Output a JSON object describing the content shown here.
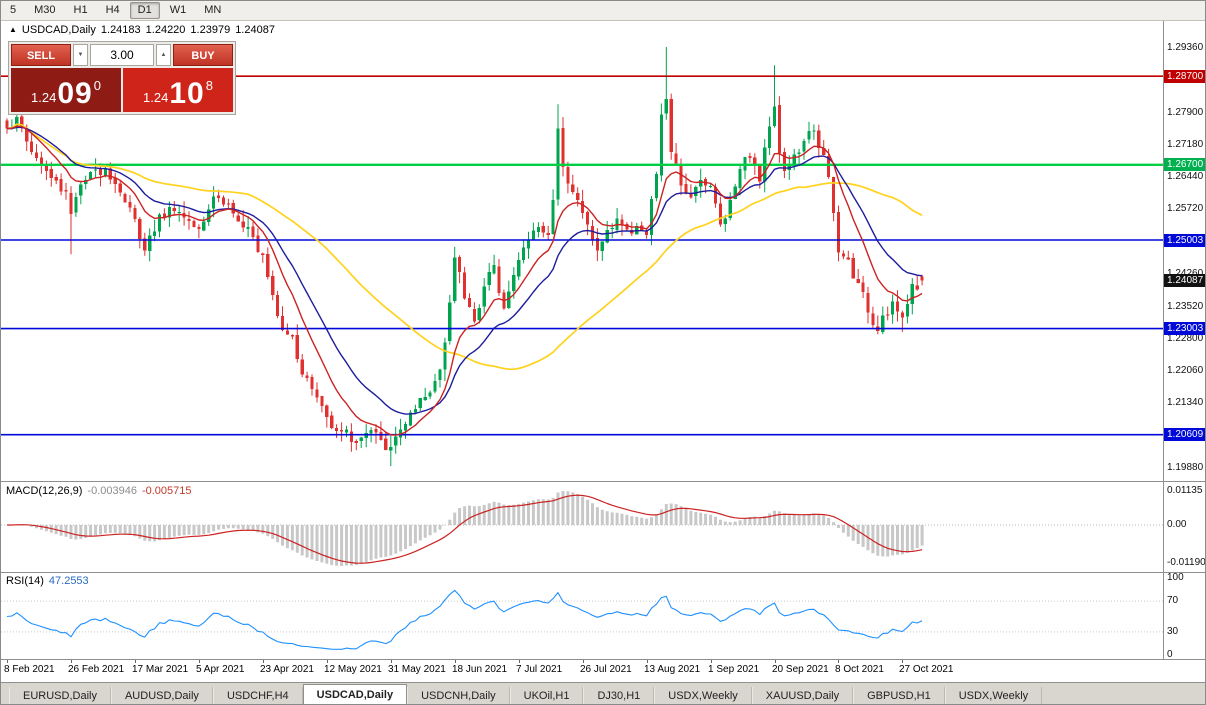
{
  "toolbar": {
    "buttons": [
      {
        "label": "5",
        "active": false
      },
      {
        "label": "M30",
        "active": false
      },
      {
        "label": "H1",
        "active": false
      },
      {
        "label": "H4",
        "active": false
      },
      {
        "label": "D1",
        "active": true
      },
      {
        "label": "W1",
        "active": false
      },
      {
        "label": "MN",
        "active": false
      }
    ]
  },
  "chart": {
    "symbol_line": {
      "marker": "▲",
      "title": "USDCAD,Daily",
      "open": "1.24183",
      "high": "1.24220",
      "low": "1.23979",
      "close": "1.24087"
    },
    "trade_panel": {
      "sell_label": "SELL",
      "buy_label": "BUY",
      "lots": "3.00",
      "down_arrow": "▼",
      "up_arrow": "▲",
      "sell_price": {
        "small": "1.24",
        "big": "09",
        "sup": "0"
      },
      "buy_price": {
        "small": "1.24",
        "big": "10",
        "sup": "8"
      }
    },
    "hlines": [
      {
        "price": 1.287,
        "color": "#c00000",
        "width": 1.6
      },
      {
        "price": 1.267,
        "color": "#00ce43",
        "width": 2.4
      },
      {
        "price": 1.25003,
        "color": "#0009d8",
        "width": 1.6
      },
      {
        "price": 1.23003,
        "color": "#0009d8",
        "width": 1.6
      },
      {
        "price": 1.20609,
        "color": "#0009d8",
        "width": 1.6
      }
    ],
    "price_axis": {
      "ticks": [
        {
          "label": "1.29360",
          "price": 1.2936
        },
        {
          "label": "1.27900",
          "price": 1.279
        },
        {
          "label": "1.27180",
          "price": 1.2718
        },
        {
          "label": "1.26440",
          "price": 1.2644
        },
        {
          "label": "1.25720",
          "price": 1.2572
        },
        {
          "label": "1.24260",
          "price": 1.2426
        },
        {
          "label": "1.23520",
          "price": 1.2352
        },
        {
          "label": "1.22800",
          "price": 1.228
        },
        {
          "label": "1.22060",
          "price": 1.2206
        },
        {
          "label": "1.21340",
          "price": 1.2134
        },
        {
          "label": "1.19880",
          "price": 1.1988
        }
      ],
      "badges": [
        {
          "label": "1.28700",
          "price": 1.287,
          "color": "#c00000"
        },
        {
          "label": "1.26700",
          "price": 1.267,
          "color": "#00b050"
        },
        {
          "label": "1.25003",
          "price": 1.25003,
          "color": "#0009d8"
        },
        {
          "label": "1.24087",
          "price": 1.24087,
          "color": "#111111",
          "current": true
        },
        {
          "label": "1.23003",
          "price": 1.23003,
          "color": "#0009d8"
        },
        {
          "label": "1.20609",
          "price": 1.20609,
          "color": "#0009d8"
        }
      ]
    }
  },
  "chart_data": {
    "type": "candlestick",
    "symbol": "USDCAD",
    "timeframe": "Daily",
    "ohlc_current": {
      "open": 1.24183,
      "high": 1.2422,
      "low": 1.23979,
      "close": 1.24087
    },
    "bars_total": 187,
    "price_range_top": 1.2936,
    "price_range_bottom": 1.1988,
    "up_color": "#00a44f",
    "down_color": "#e03131",
    "ma": {
      "fast": {
        "period": 10,
        "color": "#cc2222"
      },
      "mid": {
        "period": 20,
        "color": "#1d1d9e"
      },
      "slow": {
        "period": 50,
        "color": "#ffd21e"
      }
    },
    "seed": 1337,
    "anchors": [
      [
        0,
        1.2755
      ],
      [
        2,
        1.2775
      ],
      [
        5,
        1.27
      ],
      [
        9,
        1.264
      ],
      [
        12,
        1.261
      ],
      [
        13,
        1.256
      ],
      [
        14,
        1.26
      ],
      [
        17,
        1.265
      ],
      [
        20,
        1.2665
      ],
      [
        23,
        1.261
      ],
      [
        26,
        1.2545
      ],
      [
        28,
        1.248
      ],
      [
        31,
        1.2555
      ],
      [
        34,
        1.257
      ],
      [
        37,
        1.2545
      ],
      [
        39,
        1.253
      ],
      [
        42,
        1.26
      ],
      [
        45,
        1.258
      ],
      [
        48,
        1.2525
      ],
      [
        50,
        1.2505
      ],
      [
        52,
        1.247
      ],
      [
        54,
        1.238
      ],
      [
        56,
        1.23
      ],
      [
        58,
        1.2285
      ],
      [
        60,
        1.22
      ],
      [
        63,
        1.2145
      ],
      [
        65,
        1.21
      ],
      [
        68,
        1.207
      ],
      [
        71,
        1.2045
      ],
      [
        74,
        1.207
      ],
      [
        76,
        1.2045
      ],
      [
        78,
        1.203
      ],
      [
        80,
        1.2075
      ],
      [
        83,
        1.2115
      ],
      [
        86,
        1.2155
      ],
      [
        88,
        1.221
      ],
      [
        90,
        1.236
      ],
      [
        91,
        1.246
      ],
      [
        93,
        1.237
      ],
      [
        95,
        1.232
      ],
      [
        97,
        1.2395
      ],
      [
        99,
        1.244
      ],
      [
        101,
        1.235
      ],
      [
        103,
        1.242
      ],
      [
        104,
        1.2455
      ],
      [
        106,
        1.25
      ],
      [
        108,
        1.253
      ],
      [
        110,
        1.251
      ],
      [
        111,
        1.2595
      ],
      [
        112,
        1.275
      ],
      [
        113,
        1.267
      ],
      [
        115,
        1.261
      ],
      [
        117,
        1.256
      ],
      [
        119,
        1.2505
      ],
      [
        120,
        1.2475
      ],
      [
        122,
        1.252
      ],
      [
        124,
        1.255
      ],
      [
        126,
        1.252
      ],
      [
        128,
        1.2535
      ],
      [
        130,
        1.251
      ],
      [
        132,
        1.265
      ],
      [
        133,
        1.278
      ],
      [
        134,
        1.282
      ],
      [
        135,
        1.27
      ],
      [
        137,
        1.262
      ],
      [
        139,
        1.26
      ],
      [
        141,
        1.264
      ],
      [
        143,
        1.262
      ],
      [
        145,
        1.2535
      ],
      [
        147,
        1.259
      ],
      [
        149,
        1.2665
      ],
      [
        151,
        1.269
      ],
      [
        153,
        1.2635
      ],
      [
        155,
        1.276
      ],
      [
        156,
        1.2805
      ],
      [
        157,
        1.27
      ],
      [
        158,
        1.2655
      ],
      [
        160,
        1.269
      ],
      [
        162,
        1.272
      ],
      [
        164,
        1.275
      ],
      [
        166,
        1.269
      ],
      [
        167,
        1.264
      ],
      [
        169,
        1.2471
      ],
      [
        171,
        1.2455
      ],
      [
        173,
        1.24
      ],
      [
        175,
        1.234
      ],
      [
        176,
        1.231
      ],
      [
        177,
        1.23
      ],
      [
        178,
        1.233
      ],
      [
        180,
        1.236
      ],
      [
        182,
        1.232
      ],
      [
        184,
        1.24
      ],
      [
        186,
        1.24087
      ]
    ],
    "wick_overrides": [
      {
        "d": 13,
        "low": 1.2468
      },
      {
        "d": 28,
        "low": 1.2465
      },
      {
        "d": 78,
        "low": 1.199
      },
      {
        "d": 112,
        "high": 1.2807
      },
      {
        "d": 134,
        "high": 1.2936
      },
      {
        "d": 156,
        "high": 1.2895
      },
      {
        "d": 177,
        "low": 1.2288
      },
      {
        "d": 182,
        "low": 1.2293
      }
    ]
  },
  "macd_panel": {
    "label": "MACD(12,26,9)",
    "value_main": "-0.003946",
    "value_signal": "-0.005715",
    "ticks": [
      "0.01135",
      "0.00",
      "-0.01190"
    ],
    "histogram_color": "#c8c8c8",
    "signal_color": "#cc2222"
  },
  "rsi_panel": {
    "label": "RSI(14)",
    "value": "47.2553",
    "line_color": "#1e90ff",
    "levels": [
      70,
      30
    ],
    "ticks": [
      {
        "label": "100",
        "value": 100
      },
      {
        "label": "70",
        "value": 70
      },
      {
        "label": "30",
        "value": 30
      },
      {
        "label": "0",
        "value": 0
      }
    ]
  },
  "time_axis": {
    "labels": [
      {
        "d": 0,
        "text": "8 Feb 2021"
      },
      {
        "d": 13,
        "text": "26 Feb 2021"
      },
      {
        "d": 26,
        "text": "17 Mar 2021"
      },
      {
        "d": 39,
        "text": "5 Apr 2021"
      },
      {
        "d": 52,
        "text": "23 Apr 2021"
      },
      {
        "d": 65,
        "text": "12 May 2021"
      },
      {
        "d": 78,
        "text": "31 May 2021"
      },
      {
        "d": 91,
        "text": "18 Jun 2021"
      },
      {
        "d": 104,
        "text": "7 Jul 2021"
      },
      {
        "d": 117,
        "text": "26 Jul 2021"
      },
      {
        "d": 130,
        "text": "13 Aug 2021"
      },
      {
        "d": 143,
        "text": "1 Sep 2021"
      },
      {
        "d": 156,
        "text": "20 Sep 2021"
      },
      {
        "d": 169,
        "text": "8 Oct 2021"
      },
      {
        "d": 182,
        "text": "27 Oct 2021"
      }
    ]
  },
  "tabs": {
    "items": [
      {
        "label": "EURUSD,Daily",
        "active": false
      },
      {
        "label": "AUDUSD,Daily",
        "active": false
      },
      {
        "label": "USDCHF,H4",
        "active": false
      },
      {
        "label": "USDCAD,Daily",
        "active": true
      },
      {
        "label": "USDCNH,Daily",
        "active": false
      },
      {
        "label": "UKOil,H1",
        "active": false
      },
      {
        "label": "DJ30,H1",
        "active": false
      },
      {
        "label": "USDX,Weekly",
        "active": false
      },
      {
        "label": "XAUUSD,Daily",
        "active": false
      },
      {
        "label": "GBPUSD,H1",
        "active": false
      },
      {
        "label": "USDX,Weekly",
        "active": false
      }
    ]
  }
}
